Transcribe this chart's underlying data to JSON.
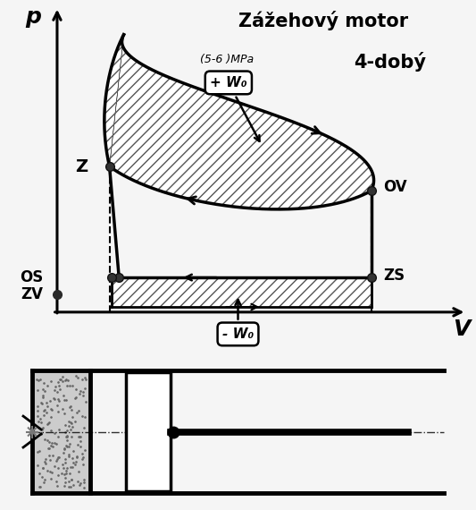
{
  "title_line1": "Zážehový motor",
  "title_line2": "4-dobý",
  "pressure_label": "p",
  "volume_label": "V",
  "mpa_label": "(5-6 )MPa",
  "plus_w0": "+ W₀",
  "minus_w0": "- W₀",
  "label_Z": "Z",
  "label_OS": "OS",
  "label_ZV": "ZV",
  "label_OV": "OV",
  "label_ZS": "ZS",
  "bg_color": "#f5f5f5",
  "hatch_color": "#444444",
  "line_color": "#000000"
}
